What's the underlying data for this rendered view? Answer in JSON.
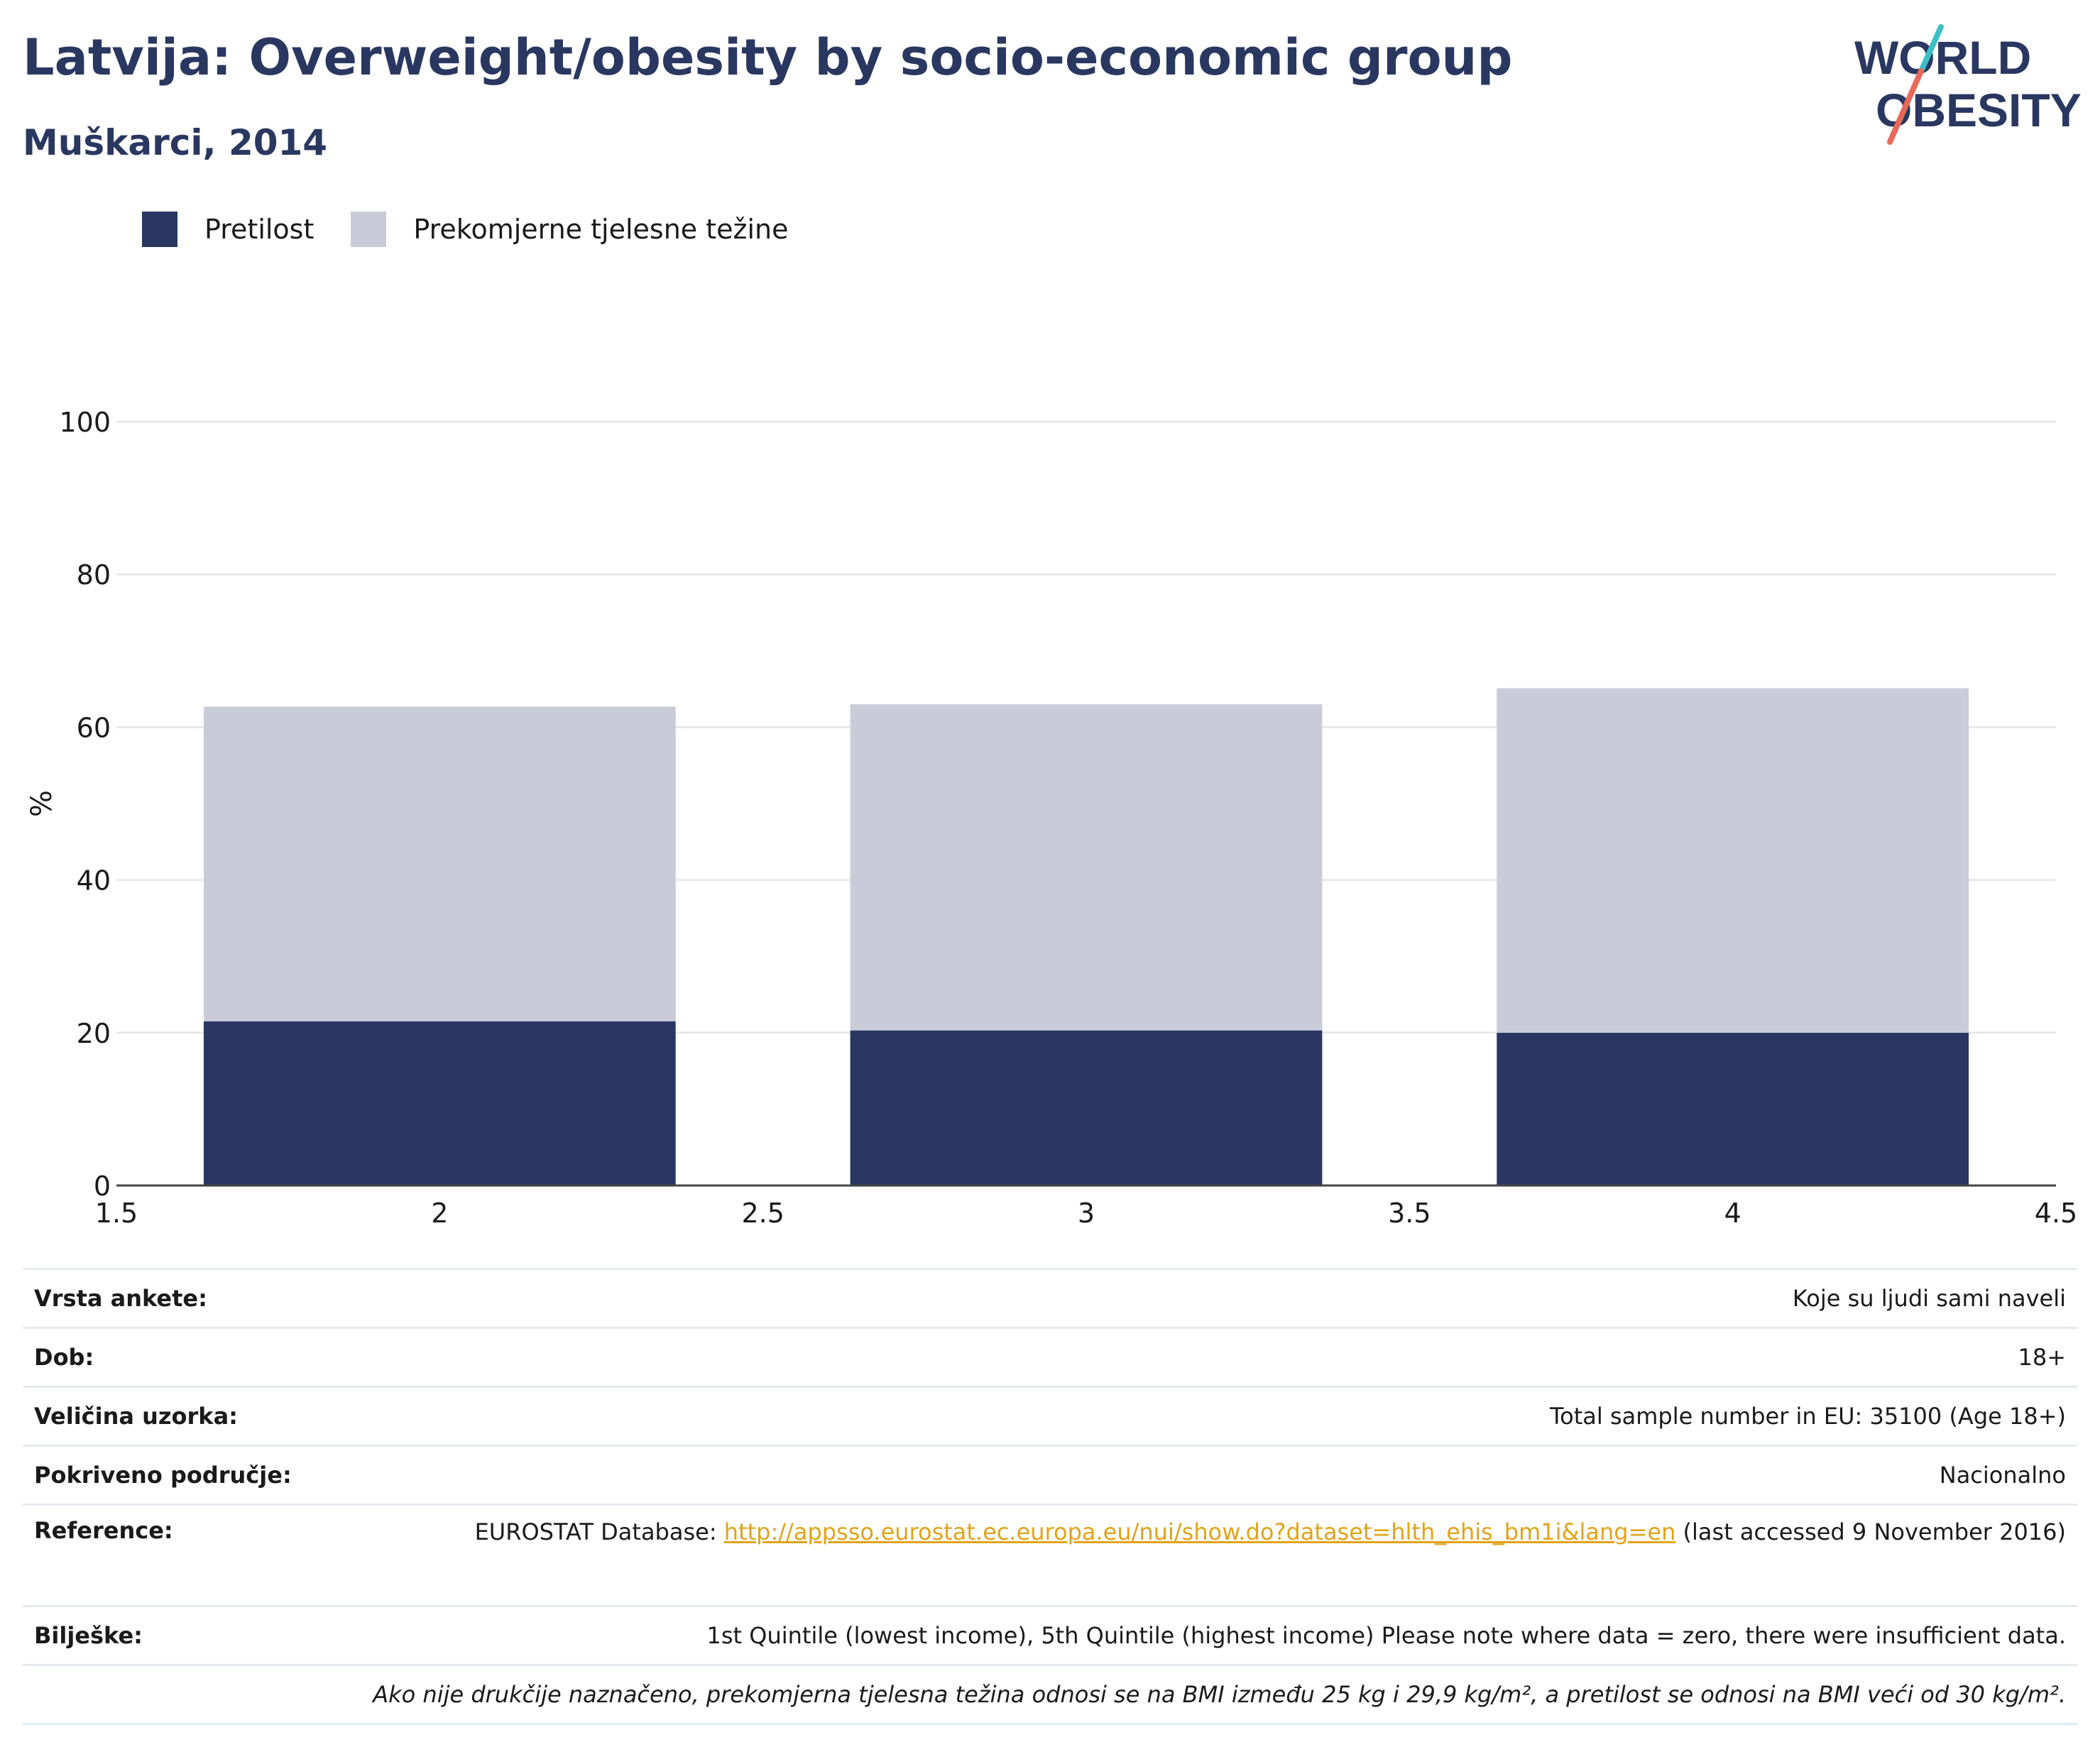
{
  "header": {
    "title": "Latvija: Overweight/obesity by socio-economic group",
    "subtitle": "Muškarci, 2014"
  },
  "logo": {
    "line1": "WORLD",
    "line2": "OBESITY"
  },
  "colors": {
    "obesity": "#2a3763",
    "overweight": "#c9ccd8",
    "title": "#2a3760",
    "link": "#e0a41a"
  },
  "chart_data": {
    "type": "bar",
    "stacked": true,
    "x": [
      2,
      3,
      4
    ],
    "series": [
      {
        "name": "Pretilost",
        "values": [
          21.5,
          20.3,
          20.0
        ],
        "color": "#2a3763"
      },
      {
        "name": "Prekomjerne tjelesne težine",
        "values": [
          41.2,
          42.7,
          45.1
        ],
        "color": "#c9ccd8"
      }
    ],
    "title": "Latvija: Overweight/obesity by socio-economic group",
    "subtitle": "Muškarci, 2014",
    "xlabel": "",
    "ylabel": "%",
    "xlim": [
      1.5,
      4.5
    ],
    "ylim": [
      0,
      100
    ],
    "xticks": [
      "1.5",
      "2",
      "2.5",
      "3",
      "3.5",
      "4",
      "4.5"
    ],
    "yticks": [
      "0",
      "20",
      "40",
      "60",
      "80",
      "100"
    ],
    "grid": true,
    "legend_position": "top-left"
  },
  "info": {
    "survey_type": {
      "label": "Vrsta ankete:",
      "value": "Koje su ljudi sami naveli"
    },
    "age": {
      "label": "Dob:",
      "value": "18+"
    },
    "sample_size": {
      "label": "Veličina uzorka:",
      "value": "Total sample number in EU: 35100 (Age 18+)"
    },
    "area": {
      "label": "Pokriveno područje:",
      "value": "Nacionalno"
    },
    "reference": {
      "label": "Reference:",
      "prefix": "EUROSTAT Database: ",
      "link": "http://appsso.eurostat.ec.europa.eu/nui/show.do?dataset=hlth_ehis_bm1i&lang=en",
      "suffix": " (last accessed 9 November 2016)"
    },
    "notes": {
      "label": "Bilješke:",
      "value": "1st Quintile (lowest income), 5th Quintile (highest income) Please note where data = zero, there were insufficient data."
    },
    "footnote": "Ako nije drukčije naznačeno, prekomjerna tjelesna težina odnosi se na BMI između 25 kg i 29,9 kg/m², a pretilost se odnosi na BMI veći od 30 kg/m²."
  }
}
